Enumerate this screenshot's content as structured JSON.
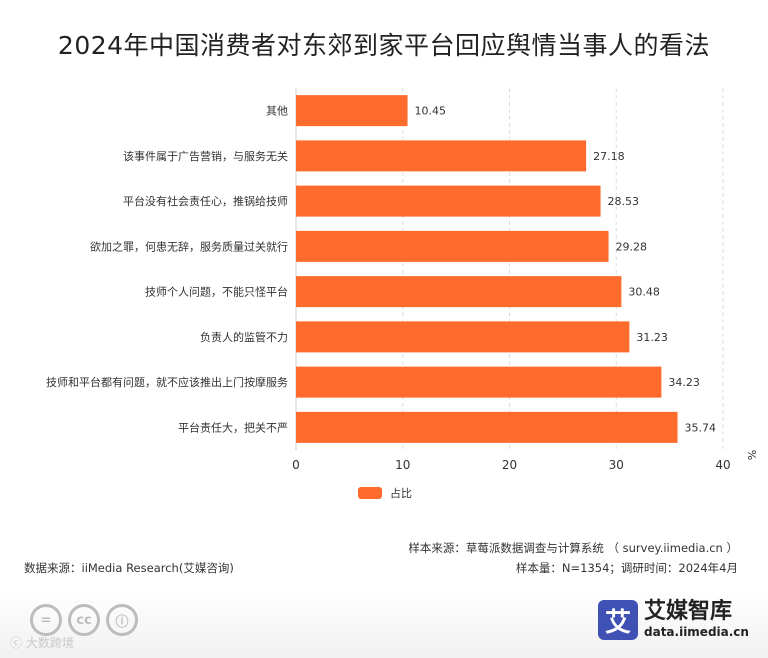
{
  "chart_data": {
    "type": "bar",
    "orientation": "horizontal",
    "title": "2024年中国消费者对东郊到家平台回应舆情当事人的看法",
    "categories": [
      "其他",
      "该事件属于广告营销，与服务无关",
      "平台没有社会责任心，推锅给技师",
      "欲加之罪，何患无辞，服务质量过关就行",
      "技师个人问题，不能只怪平台",
      "负责人的监管不力",
      "技师和平台都有问题，就不应该推出上门按摩服务",
      "平台责任大，把关不严"
    ],
    "series": [
      {
        "name": "占比",
        "values": [
          10.45,
          27.18,
          28.53,
          29.28,
          30.48,
          31.23,
          34.23,
          35.74
        ]
      }
    ],
    "xlim": [
      0,
      40
    ],
    "xticks": [
      "0",
      "10",
      "20",
      "30",
      "40"
    ],
    "x_unit": "%",
    "grid": true,
    "legend_position": "bottom",
    "color": "#ff6b2c"
  },
  "footer": {
    "data_source": "数据来源：iiMedia Research(艾媒咨询)",
    "sample_source": "样本来源：草莓派数据调查与计算系统 （ survey.iimedia.cn ）",
    "sample_info": "样本量：N=1354；调研时间：2024年4月"
  },
  "brand": {
    "logo_char": "艾",
    "name": "艾媒智库",
    "url": "data.iimedia.cn"
  },
  "watermark": "ⓒ 大数跨境",
  "license_icons": [
    "=",
    "cc",
    "ⓘ"
  ]
}
